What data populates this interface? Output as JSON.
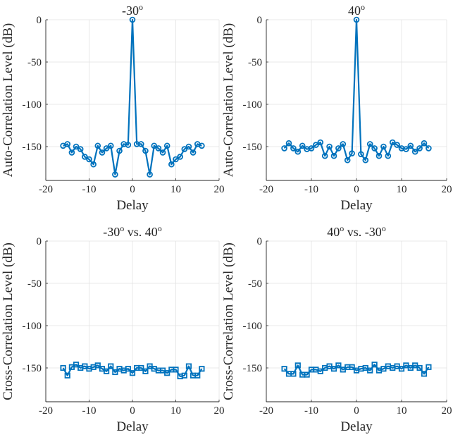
{
  "chart_data": [
    {
      "type": "line",
      "marker": "circle",
      "title_main": "-30",
      "title_sup": "o",
      "title_tail": "",
      "xlabel": "Delay",
      "ylabel": "Auto-Correlation Level (dB)",
      "xlim": [
        -20,
        20
      ],
      "ylim": [
        -190,
        0
      ],
      "xticks": [
        -20,
        -10,
        0,
        10,
        20
      ],
      "yticks": [
        0,
        -50,
        -100,
        -150
      ],
      "grid": true,
      "color": "#0072BD",
      "x": [
        -16,
        -15,
        -14,
        -13,
        -12,
        -11,
        -10,
        -9,
        -8,
        -7,
        -6,
        -5,
        -4,
        -3,
        -2,
        -1,
        0,
        1,
        2,
        3,
        4,
        5,
        6,
        7,
        8,
        9,
        10,
        11,
        12,
        13,
        14,
        15,
        16
      ],
      "y": [
        -149,
        -147,
        -157,
        -150,
        -153,
        -162,
        -165,
        -171,
        -149,
        -157,
        -152,
        -149,
        -183,
        -155,
        -147,
        -148,
        0,
        -147,
        -147,
        -155,
        -183,
        -149,
        -152,
        -157,
        -149,
        -171,
        -165,
        -162,
        -153,
        -150,
        -157,
        -147,
        -149
      ]
    },
    {
      "type": "line",
      "marker": "circle",
      "title_main": "40",
      "title_sup": "o",
      "title_tail": "",
      "xlabel": "Delay",
      "ylabel": "Auto-Correlation Level (dB)",
      "xlim": [
        -20,
        20
      ],
      "ylim": [
        -190,
        0
      ],
      "xticks": [
        -20,
        -10,
        0,
        10,
        20
      ],
      "yticks": [
        0,
        -50,
        -100,
        -150
      ],
      "grid": true,
      "color": "#0072BD",
      "x": [
        -16,
        -15,
        -14,
        -13,
        -12,
        -11,
        -10,
        -9,
        -8,
        -7,
        -6,
        -5,
        -4,
        -3,
        -2,
        -1,
        0,
        1,
        2,
        3,
        4,
        5,
        6,
        7,
        8,
        9,
        10,
        11,
        12,
        13,
        14,
        15,
        16
      ],
      "y": [
        -152,
        -146,
        -152,
        -156,
        -149,
        -153,
        -152,
        -148,
        -145,
        -161,
        -150,
        -161,
        -152,
        -147,
        -166,
        -158,
        0,
        -159,
        -166,
        -147,
        -152,
        -161,
        -150,
        -161,
        -145,
        -148,
        -152,
        -153,
        -149,
        -156,
        -152,
        -146,
        -152
      ]
    },
    {
      "type": "line",
      "marker": "square",
      "title_main": "-30",
      "title_sup": "o",
      "title_tail": " vs. 40",
      "title_tail_sup": "o",
      "xlabel": "Delay",
      "ylabel": "Cross-Correlation Level (dB)",
      "xlim": [
        -20,
        20
      ],
      "ylim": [
        -190,
        0
      ],
      "xticks": [
        -20,
        -10,
        0,
        10,
        20
      ],
      "yticks": [
        0,
        -50,
        -100,
        -150
      ],
      "grid": true,
      "color": "#0072BD",
      "x": [
        -16,
        -15,
        -14,
        -13,
        -12,
        -11,
        -10,
        -9,
        -8,
        -7,
        -6,
        -5,
        -4,
        -3,
        -2,
        -1,
        0,
        1,
        2,
        3,
        4,
        5,
        6,
        7,
        8,
        9,
        10,
        11,
        12,
        13,
        14,
        15,
        16
      ],
      "y": [
        -150,
        -159,
        -149,
        -146,
        -150,
        -148,
        -151,
        -149,
        -147,
        -151,
        -154,
        -148,
        -155,
        -151,
        -153,
        -151,
        -156,
        -150,
        -150,
        -154,
        -148,
        -151,
        -153,
        -153,
        -156,
        -152,
        -152,
        -160,
        -159,
        -148,
        -159,
        -159,
        -151
      ]
    },
    {
      "type": "line",
      "marker": "square",
      "title_main": "40",
      "title_sup": "o",
      "title_tail": " vs. -30",
      "title_tail_sup": "o",
      "xlabel": "Delay",
      "ylabel": "Cross-Correlation Level (dB)",
      "xlim": [
        -20,
        20
      ],
      "ylim": [
        -190,
        0
      ],
      "xticks": [
        -20,
        -10,
        0,
        10,
        20
      ],
      "yticks": [
        0,
        -50,
        -100,
        -150
      ],
      "grid": true,
      "color": "#0072BD",
      "x": [
        -16,
        -15,
        -14,
        -13,
        -12,
        -11,
        -10,
        -9,
        -8,
        -7,
        -6,
        -5,
        -4,
        -3,
        -2,
        -1,
        0,
        1,
        2,
        3,
        4,
        5,
        6,
        7,
        8,
        9,
        10,
        11,
        12,
        13,
        14,
        15,
        16
      ],
      "y": [
        -151,
        -157,
        -157,
        -147,
        -158,
        -158,
        -152,
        -152,
        -154,
        -150,
        -148,
        -151,
        -147,
        -152,
        -149,
        -149,
        -153,
        -151,
        -150,
        -153,
        -146,
        -153,
        -151,
        -148,
        -150,
        -148,
        -151,
        -147,
        -150,
        -147,
        -150,
        -157,
        -149
      ]
    }
  ]
}
